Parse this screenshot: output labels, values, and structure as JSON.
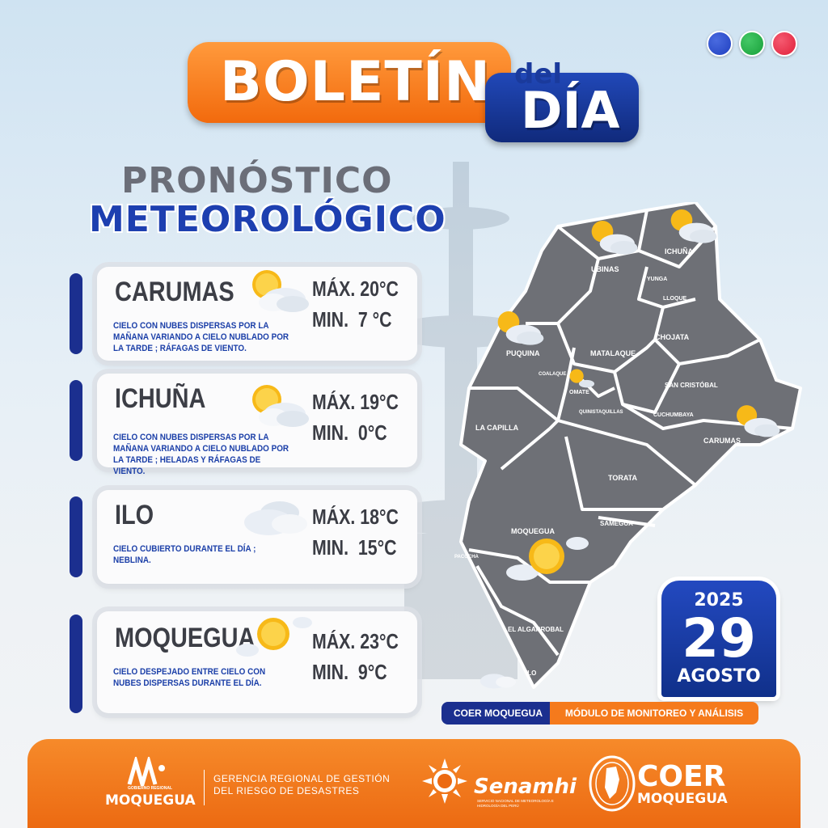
{
  "header": {
    "boletin": "BOLETÍN",
    "del": "del",
    "dia": "DÍA",
    "title_line1": "PRONÓSTICO",
    "title_line2": "METEOROLÓGICO"
  },
  "decor_dots": [
    "#1f3fbf",
    "#18a03a",
    "#e0203a"
  ],
  "forecasts": [
    {
      "city": "CARUMAS",
      "description": "CIELO CON NUBES DISPERSAS POR LA MAÑANA VARIANDO A CIELO NUBLADO POR LA TARDE ; RÁFAGAS DE VIENTO.",
      "max": "MÁX. 20°C",
      "min": "MIN.  7 °C",
      "icon": "sun-behind-cloud-icon"
    },
    {
      "city": "ICHUÑA",
      "description": "CIELO CON NUBES DISPERSAS POR LA MAÑANA VARIANDO A CIELO NUBLADO POR LA TARDE ; HELADAS Y RÁFAGAS DE VIENTO.",
      "max": "MÁX. 19°C",
      "min": "MIN.  0°C",
      "icon": "sun-behind-cloud-icon"
    },
    {
      "city": "ILO",
      "description": "CIELO CUBIERTO DURANTE EL DÍA ; NEBLINA.",
      "max": "MÁX. 18°C",
      "min": "MIN.  15°C",
      "icon": "cloud-icon"
    },
    {
      "city": "MOQUEGUA",
      "description": "CIELO DESPEJADO ENTRE CIELO CON NUBES DISPERSAS DURANTE EL DÍA.",
      "max": "MÁX. 23°C",
      "min": "MIN.  9°C",
      "icon": "sun-icon"
    }
  ],
  "map_labels": {
    "ubinas": "UBINAS",
    "ichuna": "ICHUÑA",
    "yunga": "YUNGA",
    "lloque": "LLOQUE",
    "chojata": "CHOJATA",
    "matalaque": "MATALAQUE",
    "puquina": "PUQUINA",
    "coalaque": "COALAQUE",
    "omate": "OMATE",
    "quinistaquillas": "QUINISTAQUILLAS",
    "san_cristobal": "SAN CRISTÓBAL",
    "cuchumbaya": "CUCHUMBAYA",
    "carumas": "CARUMAS",
    "la_capilla": "LA CAPILLA",
    "torata": "TORATA",
    "samegua": "SAMEGUA",
    "moquegua": "MOQUEGUA",
    "pacocha": "PACOCHA",
    "el_algarrobal": "EL ALGARROBAL",
    "ilo": "ILO"
  },
  "date": {
    "year": "2025",
    "day": "29",
    "month": "AGOSTO"
  },
  "tags": {
    "left": "COER MOQUEGUA",
    "right": "MÓDULO DE MONITOREO Y ANÁLISIS"
  },
  "footer": {
    "gobierno_small": "GOBIERNO REGIONAL",
    "gobierno": "MOQUEGUA",
    "gerencia": "GERENCIA REGIONAL DE GESTIÓN\nDEL RIESGO DE DESASTRES",
    "senamhi": "Senamhi",
    "senamhi_sub": "SERVICIO NACIONAL DE METEOROLOGÍA E HIDROLOGÍA DEL PERÚ",
    "coer": "COER",
    "coer_sub": "MOQUEGUA"
  },
  "colors": {
    "orange": "#f26a0d",
    "blue": "#1d3fb0",
    "map_gray": "#6e7076"
  }
}
